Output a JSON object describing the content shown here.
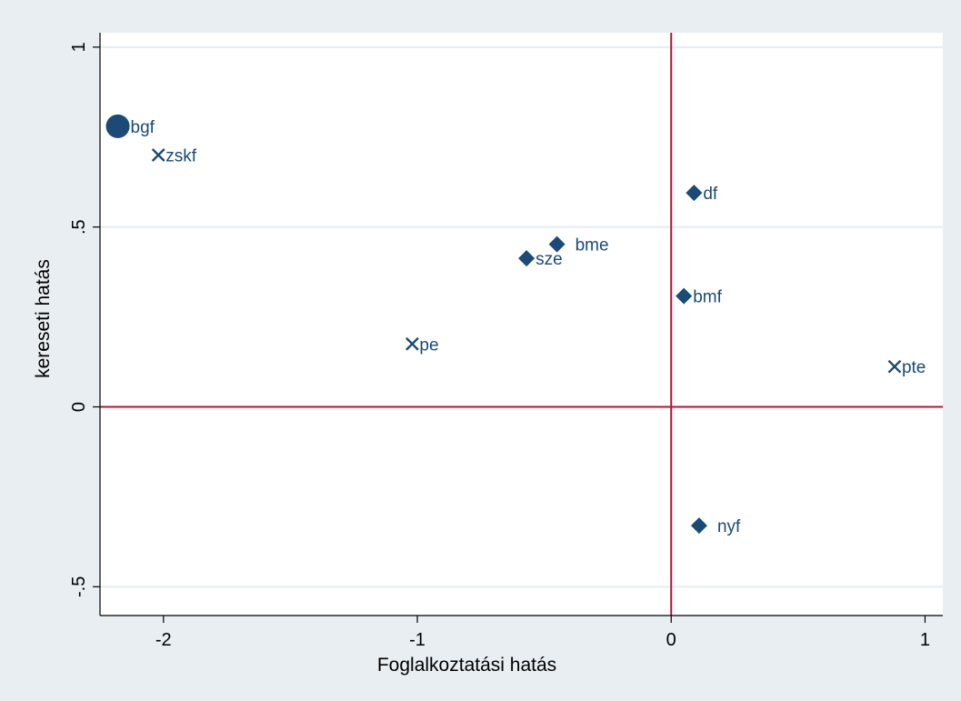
{
  "chart_data": {
    "type": "scatter",
    "title": "",
    "xlabel": "Foglalkoztatási hatás",
    "ylabel": "kereseti hatás",
    "xlim": [
      -2.25,
      1.07
    ],
    "ylim": [
      -0.58,
      1.04
    ],
    "xticks": [
      -2,
      -1,
      0,
      1
    ],
    "xtick_labels": [
      "-2",
      "-1",
      "0",
      "1"
    ],
    "yticks": [
      -0.5,
      0,
      0.5,
      1
    ],
    "ytick_labels": [
      "-.5",
      "0",
      ".5",
      "1"
    ],
    "grid": "horizontal",
    "reference_lines": {
      "x": 0,
      "y": 0,
      "color": "#b5123a"
    },
    "marker_color": "#1a4a75",
    "points": [
      {
        "label": "bgf",
        "x": -2.18,
        "y": 0.78,
        "marker": "circle-large"
      },
      {
        "label": "zskf",
        "x": -2.02,
        "y": 0.7,
        "marker": "x"
      },
      {
        "label": "df",
        "x": 0.09,
        "y": 0.595,
        "marker": "diamond"
      },
      {
        "label": "bme",
        "x": -0.45,
        "y": 0.452,
        "marker": "diamond"
      },
      {
        "label": "sze",
        "x": -0.57,
        "y": 0.413,
        "marker": "diamond"
      },
      {
        "label": "bmf",
        "x": 0.05,
        "y": 0.308,
        "marker": "diamond"
      },
      {
        "label": "pe",
        "x": -1.02,
        "y": 0.175,
        "marker": "x"
      },
      {
        "label": "pte",
        "x": 0.88,
        "y": 0.112,
        "marker": "x"
      },
      {
        "label": "nyf",
        "x": 0.11,
        "y": -0.33,
        "marker": "diamond"
      }
    ]
  }
}
